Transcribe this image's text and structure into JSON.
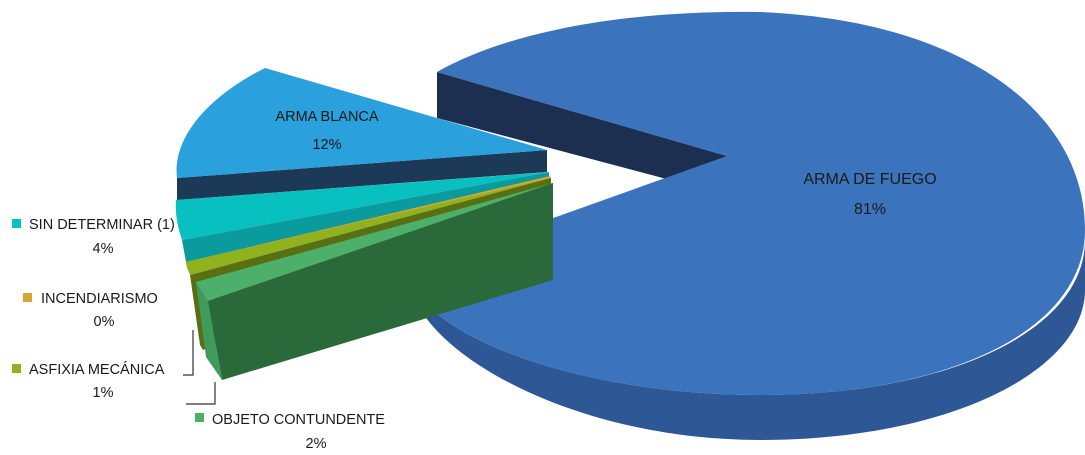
{
  "chart_data": {
    "type": "pie",
    "title": "",
    "style": "3d-exploded",
    "legend": "labels beside slices",
    "slices": [
      {
        "label": "ARMA DE FUEGO",
        "value": 81,
        "value_label": "81%",
        "color": "#3b74bd"
      },
      {
        "label": "OBJETO CONTUNDENTE",
        "value": 2,
        "value_label": "2%",
        "color": "#4cb06b"
      },
      {
        "label": "ASFIXIA MECÁNICA",
        "value": 1,
        "value_label": "1%",
        "color": "#8fb21e"
      },
      {
        "label": "INCENDIARISMO",
        "value": 0,
        "value_label": "0%",
        "color": "#d8a535"
      },
      {
        "label": "SIN DETERMINAR (1)",
        "value": 4,
        "value_label": "4%",
        "color": "#08c0c0"
      },
      {
        "label": "ARMA BLANCA",
        "value": 12,
        "value_label": "12%",
        "color": "#2aa0dd"
      }
    ]
  }
}
